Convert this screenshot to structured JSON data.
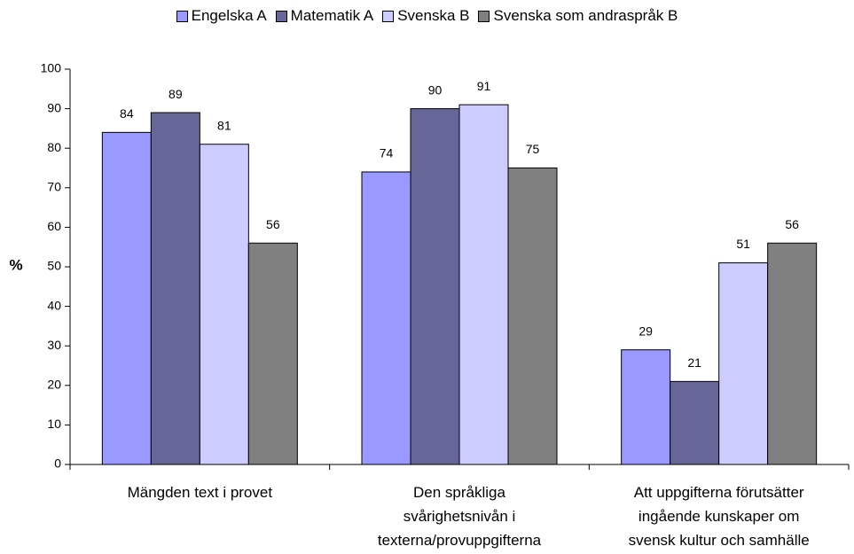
{
  "chart_data": {
    "type": "bar",
    "y_label": "%",
    "categories": [
      "Mängden text i provet",
      "Den språkliga\nsvårighetsnivån i\ntexterna/provuppgifterna",
      "Att uppgifterna förutsätter\ningående kunskaper om\nsvensk kultur och samhälle"
    ],
    "series": [
      {
        "name": "Engelska A",
        "color": "#9999ff",
        "values": [
          84,
          74,
          29
        ]
      },
      {
        "name": "Matematik A",
        "color": "#666699",
        "values": [
          89,
          90,
          21
        ]
      },
      {
        "name": "Svenska B",
        "color": "#ccccff",
        "values": [
          81,
          91,
          51
        ]
      },
      {
        "name": "Svenska som andraspråk B",
        "color": "#808080",
        "values": [
          56,
          75,
          56
        ]
      }
    ],
    "ylim": [
      0,
      100
    ],
    "yticks": [
      0,
      10,
      20,
      30,
      40,
      50,
      60,
      70,
      80,
      90,
      100
    ],
    "legend": "top"
  }
}
